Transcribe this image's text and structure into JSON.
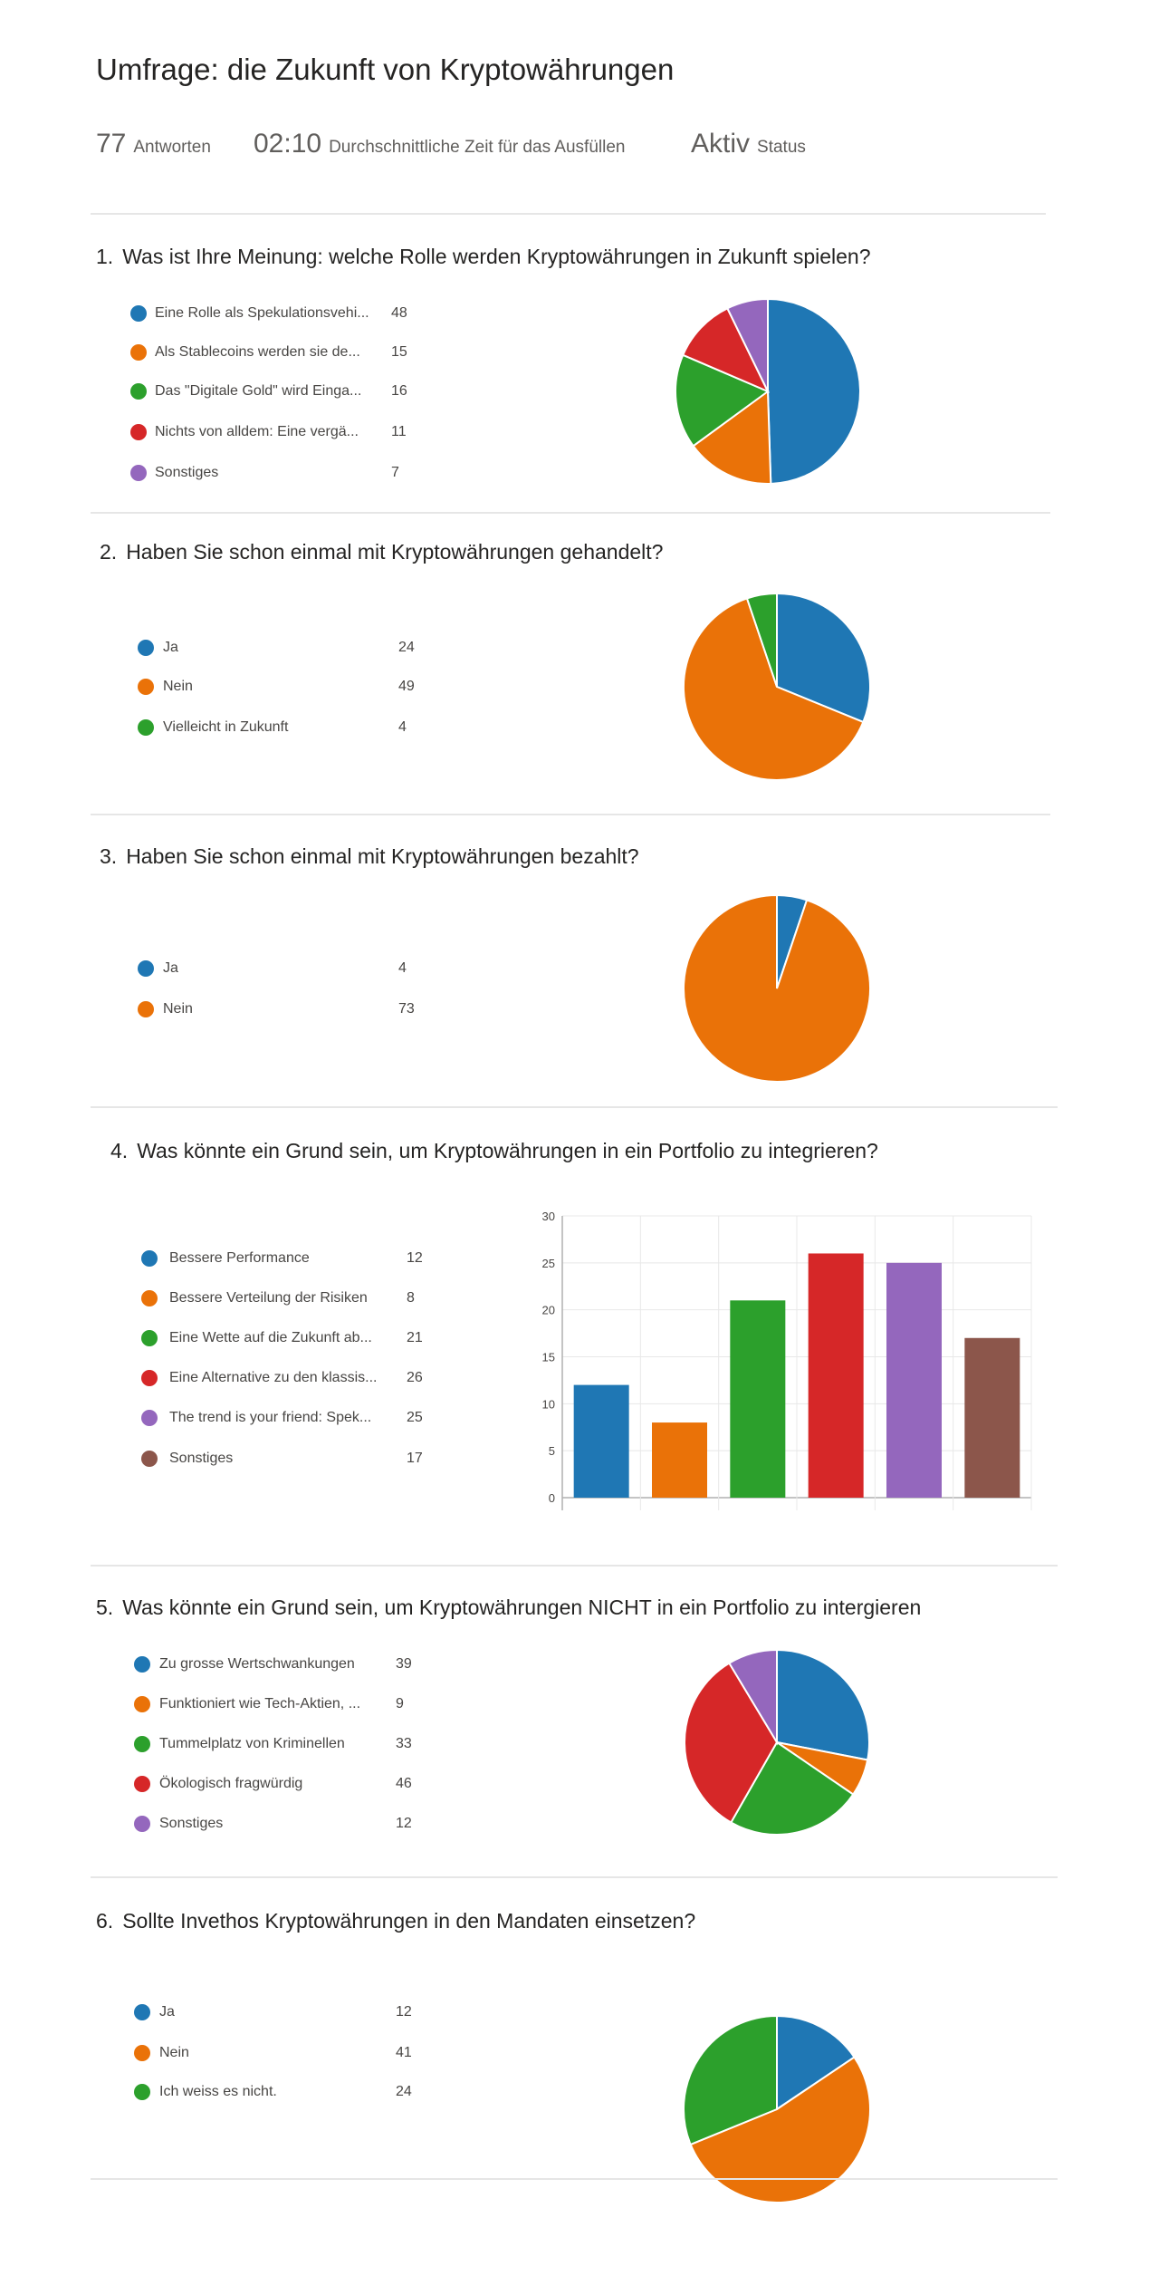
{
  "header": {
    "title": "Umfrage: die Zukunft von Kryptowährungen",
    "responses_value": "77",
    "responses_label": "Antworten",
    "avg_time_value": "02:10",
    "avg_time_label": "Durchschnittliche Zeit für das Ausfüllen",
    "status_value": "Aktiv",
    "status_label": "Status"
  },
  "colors": [
    "#1f77b4",
    "#ea7208",
    "#2ca02c",
    "#d62728",
    "#9467bd",
    "#8c564b"
  ],
  "questions": [
    {
      "number": "1.",
      "title": "Was ist Ihre Meinung: welche Rolle werden Kryptowährungen in Zukunft spielen?",
      "chart": "pie",
      "options": [
        {
          "label": "Eine Rolle als Spekulationsvehi...",
          "value": 48
        },
        {
          "label": "Als Stablecoins werden sie de...",
          "value": 15
        },
        {
          "label": "Das \"Digitale Gold\" wird Einga...",
          "value": 16
        },
        {
          "label": "Nichts von alldem: Eine vergä...",
          "value": 11
        },
        {
          "label": "Sonstiges",
          "value": 7
        }
      ]
    },
    {
      "number": "2.",
      "title": "Haben Sie schon einmal mit Kryptowährungen gehandelt?",
      "chart": "pie",
      "options": [
        {
          "label": "Ja",
          "value": 24
        },
        {
          "label": "Nein",
          "value": 49
        },
        {
          "label": "Vielleicht in Zukunft",
          "value": 4
        }
      ]
    },
    {
      "number": "3.",
      "title": "Haben Sie schon einmal mit Kryptowährungen bezahlt?",
      "chart": "pie",
      "options": [
        {
          "label": "Ja",
          "value": 4
        },
        {
          "label": "Nein",
          "value": 73
        }
      ]
    },
    {
      "number": "4.",
      "title": "Was könnte ein Grund sein, um Kryptowährungen in ein Portfolio zu integrieren?",
      "chart": "bar",
      "options": [
        {
          "label": "Bessere Performance",
          "value": 12
        },
        {
          "label": "Bessere Verteilung der Risiken",
          "value": 8
        },
        {
          "label": "Eine Wette auf die Zukunft ab...",
          "value": 21
        },
        {
          "label": "Eine Alternative zu den klassis...",
          "value": 26
        },
        {
          "label": "The trend is your friend: Spek...",
          "value": 25
        },
        {
          "label": "Sonstiges",
          "value": 17
        }
      ]
    },
    {
      "number": "5.",
      "title": "Was könnte ein Grund sein, um Kryptowährungen NICHT in ein Portfolio zu intergieren",
      "chart": "pie",
      "options": [
        {
          "label": "Zu grosse Wertschwankungen",
          "value": 39
        },
        {
          "label": "Funktioniert wie Tech-Aktien, ...",
          "value": 9
        },
        {
          "label": "Tummelplatz von Kriminellen",
          "value": 33
        },
        {
          "label": "Ökologisch fragwürdig",
          "value": 46
        },
        {
          "label": "Sonstiges",
          "value": 12
        }
      ]
    },
    {
      "number": "6.",
      "title": "Sollte Invethos Kryptowährungen in den Mandaten einsetzen?",
      "chart": "pie",
      "options": [
        {
          "label": "Ja",
          "value": 12
        },
        {
          "label": "Nein",
          "value": 41
        },
        {
          "label": "Ich weiss es nicht.",
          "value": 24
        }
      ]
    }
  ],
  "chart_data": [
    {
      "type": "pie",
      "title": "Was ist Ihre Meinung: welche Rolle werden Kryptowährungen in Zukunft spielen?",
      "categories": [
        "Eine Rolle als Spekulationsvehi...",
        "Als Stablecoins werden sie de...",
        "Das \"Digitale Gold\" wird Einga...",
        "Nichts von alldem: Eine vergä...",
        "Sonstiges"
      ],
      "values": [
        48,
        15,
        16,
        11,
        7
      ]
    },
    {
      "type": "pie",
      "title": "Haben Sie schon einmal mit Kryptowährungen gehandelt?",
      "categories": [
        "Ja",
        "Nein",
        "Vielleicht in Zukunft"
      ],
      "values": [
        24,
        49,
        4
      ]
    },
    {
      "type": "pie",
      "title": "Haben Sie schon einmal mit Kryptowährungen bezahlt?",
      "categories": [
        "Ja",
        "Nein"
      ],
      "values": [
        4,
        73
      ]
    },
    {
      "type": "bar",
      "title": "Was könnte ein Grund sein, um Kryptowährungen in ein Portfolio zu integrieren?",
      "categories": [
        "Bessere Performance",
        "Bessere Verteilung der Risiken",
        "Eine Wette auf die Zukunft ab...",
        "Eine Alternative zu den klassis...",
        "The trend is your friend: Spek...",
        "Sonstiges"
      ],
      "values": [
        12,
        8,
        21,
        26,
        25,
        17
      ],
      "ylim": [
        0,
        30
      ],
      "yticks": [
        "0",
        "5",
        "10",
        "15",
        "20",
        "25",
        "30"
      ],
      "grid": true
    },
    {
      "type": "pie",
      "title": "Was könnte ein Grund sein, um Kryptowährungen NICHT in ein Portfolio zu intergieren",
      "categories": [
        "Zu grosse Wertschwankungen",
        "Funktioniert wie Tech-Aktien, ...",
        "Tummelplatz von Kriminellen",
        "Ökologisch fragwürdig",
        "Sonstiges"
      ],
      "values": [
        39,
        9,
        33,
        46,
        12
      ]
    },
    {
      "type": "pie",
      "title": "Sollte Invethos Kryptowährungen in den Mandaten einsetzen?",
      "categories": [
        "Ja",
        "Nein",
        "Ich weiss es nicht."
      ],
      "values": [
        12,
        41,
        24
      ]
    }
  ]
}
